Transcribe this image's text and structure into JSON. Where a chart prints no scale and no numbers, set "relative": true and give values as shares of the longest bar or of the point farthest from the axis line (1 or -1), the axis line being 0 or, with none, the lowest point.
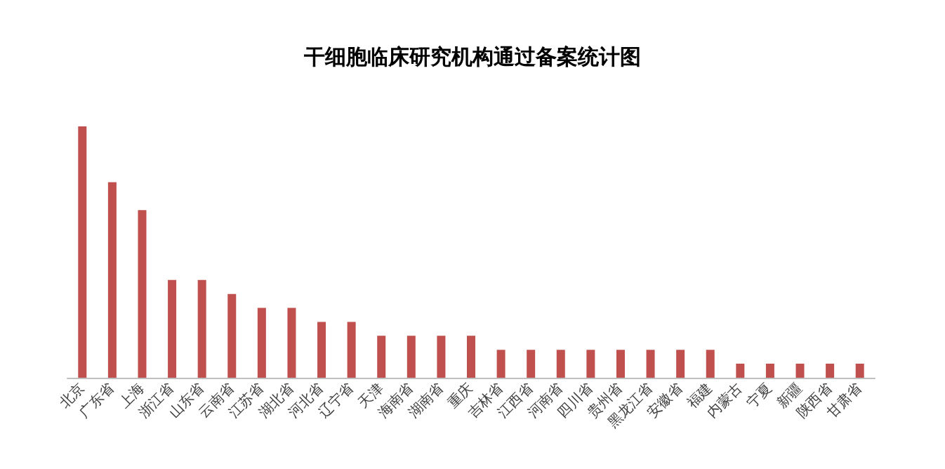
{
  "chart_data": {
    "type": "bar",
    "title": "干细胞临床研究机构通过备案统计图",
    "categories": [
      "北京",
      "广东省",
      "上海",
      "浙江省",
      "山东省",
      "云南省",
      "江苏省",
      "湖北省",
      "河北省",
      "辽宁省",
      "天津",
      "海南省",
      "湖南省",
      "重庆",
      "吉林省",
      "江西省",
      "河南省",
      "四川省",
      "贵州省",
      "黑龙江省",
      "安徽省",
      "福建",
      "内蒙古",
      "宁夏",
      "新疆",
      "陕西省",
      "甘肃省"
    ],
    "values": [
      1,
      0.778,
      0.667,
      0.389,
      0.389,
      0.333,
      0.278,
      0.278,
      0.222,
      0.222,
      0.167,
      0.167,
      0.167,
      0.167,
      0.111,
      0.111,
      0.111,
      0.111,
      0.111,
      0.111,
      0.111,
      0.111,
      0.056,
      0.056,
      0.056,
      0.056,
      0.056
    ],
    "color": "#c0504d",
    "relative": true
  }
}
